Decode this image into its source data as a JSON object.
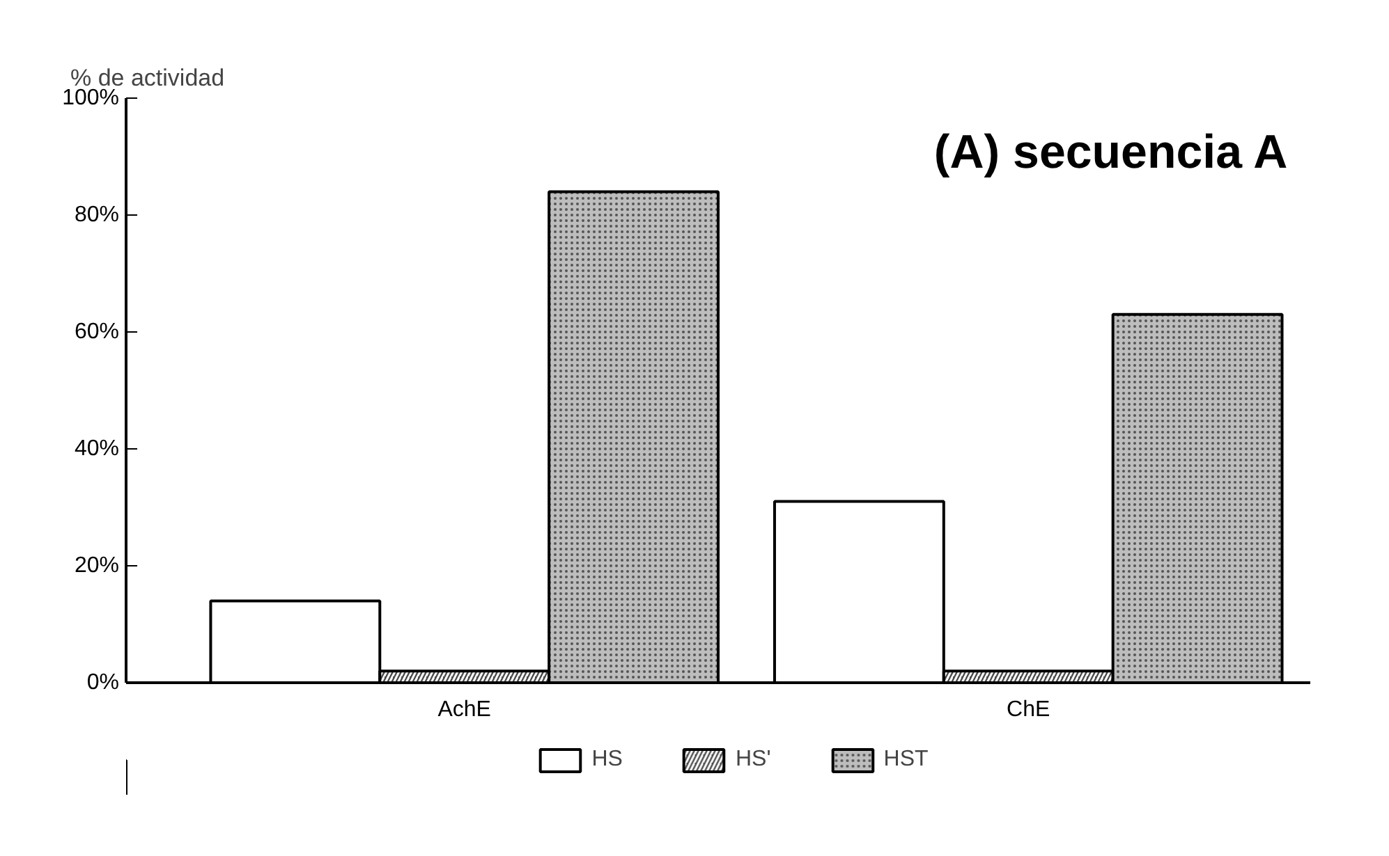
{
  "chart_data": {
    "type": "bar",
    "title": "(A) secuencia A",
    "ylabel": "% de actividad",
    "categories": [
      "AchE",
      "ChE"
    ],
    "series": [
      {
        "name": "HS",
        "color": "#ffffff",
        "values": [
          14,
          31
        ]
      },
      {
        "name": "HS'",
        "color": "#4a4a4a",
        "values": [
          2,
          2
        ]
      },
      {
        "name": "HST",
        "color": "#bdbdbd",
        "values": [
          84,
          63
        ]
      }
    ],
    "ylim": [
      0,
      100
    ],
    "yticks": [
      {
        "value": 0,
        "label": "0%"
      },
      {
        "value": 20,
        "label": "20%"
      },
      {
        "value": 40,
        "label": "40%"
      },
      {
        "value": 60,
        "label": "60%"
      },
      {
        "value": 80,
        "label": "80%"
      },
      {
        "value": 100,
        "label": "100%"
      }
    ],
    "grid": false,
    "legend": "bottom"
  }
}
